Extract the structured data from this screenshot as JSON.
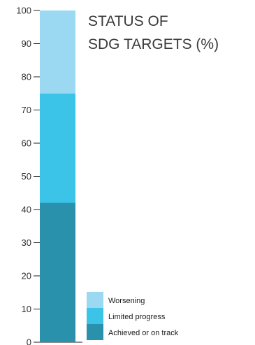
{
  "chart_data": {
    "type": "bar",
    "stacked": true,
    "title": [
      "STATUS OF",
      "SDG TARGETS (%)"
    ],
    "ylim": [
      0,
      100
    ],
    "yticks": [
      0,
      10,
      20,
      30,
      40,
      50,
      60,
      70,
      80,
      90,
      100
    ],
    "series": [
      {
        "name": "Achieved or on track",
        "value": 42,
        "color": "#2a91ac"
      },
      {
        "name": "Limited progress",
        "value": 33,
        "color": "#3bc4e7"
      },
      {
        "name": "Worsening",
        "value": 25,
        "color": "#9bd9f2"
      }
    ],
    "legend": {
      "position": "bottom-right",
      "order": [
        "Worsening",
        "Limited progress",
        "Achieved or on track"
      ]
    },
    "grid": false
  }
}
